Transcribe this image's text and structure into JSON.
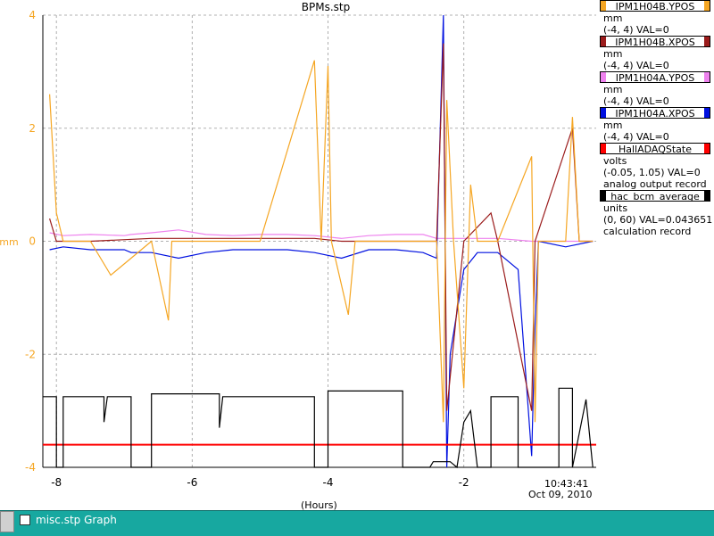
{
  "chart_data": {
    "type": "line",
    "title": "BPMs.stp",
    "ylabel": "mm",
    "xlabel": "(Hours)",
    "xlim": [
      -8.2,
      -0.05
    ],
    "ylim": [
      -4,
      4
    ],
    "x_ticks": [
      -8,
      -6,
      -4,
      -2
    ],
    "y_ticks": [
      -4,
      -2,
      0,
      2,
      4
    ],
    "grid": true,
    "end_time": "10:43:41",
    "end_date": "Oct 09, 2010",
    "legend": [
      {
        "name": "IPM1H04B.YPOS",
        "units": "mm",
        "range": "(-4, 4) VAL=0",
        "color": "#f5a623"
      },
      {
        "name": "IPM1H04B.XPOS",
        "units": "mm",
        "range": "(-4, 4) VAL=0",
        "color": "#9b1c1c"
      },
      {
        "name": "IPM1H04A.YPOS",
        "units": "mm",
        "range": "(-4, 4) VAL=0",
        "color": "#ee82ee"
      },
      {
        "name": "IPM1H04A.XPOS",
        "units": "mm",
        "range": "(-4, 4) VAL=0",
        "color": "#0010e0"
      },
      {
        "name": "HallADAQState",
        "units": "volts",
        "range": "(-0.05, 1.05) VAL=0",
        "extra": "analog output record",
        "color": "#ff0000"
      },
      {
        "name": "hac_bcm_average",
        "units": "units",
        "range": "(0, 60) VAL=0.043651",
        "extra": "calculation record",
        "color": "#000000"
      }
    ],
    "series": [
      {
        "name": "IPM1H04A.YPOS",
        "color": "#ee82ee",
        "points": [
          [
            -8.1,
            0.15
          ],
          [
            -7.9,
            0.1
          ],
          [
            -7.5,
            0.12
          ],
          [
            -7.0,
            0.1
          ],
          [
            -6.9,
            0.12
          ],
          [
            -6.6,
            0.15
          ],
          [
            -6.2,
            0.2
          ],
          [
            -5.8,
            0.12
          ],
          [
            -5.4,
            0.1
          ],
          [
            -5.0,
            0.12
          ],
          [
            -4.6,
            0.12
          ],
          [
            -4.2,
            0.1
          ],
          [
            -3.8,
            0.05
          ],
          [
            -3.4,
            0.1
          ],
          [
            -3.0,
            0.12
          ],
          [
            -2.6,
            0.12
          ],
          [
            -2.4,
            0.05
          ],
          [
            -2.0,
            0.05
          ],
          [
            -1.5,
            0.05
          ],
          [
            -1.0,
            0.0
          ],
          [
            -0.5,
            0.0
          ],
          [
            -0.1,
            0.0
          ]
        ]
      },
      {
        "name": "IPM1H04A.XPOS",
        "color": "#0010e0",
        "points": [
          [
            -8.1,
            -0.15
          ],
          [
            -7.9,
            -0.1
          ],
          [
            -7.5,
            -0.15
          ],
          [
            -7.0,
            -0.15
          ],
          [
            -6.9,
            -0.2
          ],
          [
            -6.6,
            -0.2
          ],
          [
            -6.2,
            -0.3
          ],
          [
            -5.8,
            -0.2
          ],
          [
            -5.4,
            -0.15
          ],
          [
            -5.0,
            -0.15
          ],
          [
            -4.6,
            -0.15
          ],
          [
            -4.2,
            -0.2
          ],
          [
            -3.8,
            -0.3
          ],
          [
            -3.4,
            -0.15
          ],
          [
            -3.0,
            -0.15
          ],
          [
            -2.6,
            -0.2
          ],
          [
            -2.4,
            -0.3
          ],
          [
            -2.3,
            4.0
          ],
          [
            -2.25,
            -4.0
          ],
          [
            -2.2,
            -2.0
          ],
          [
            -2.0,
            -0.5
          ],
          [
            -1.8,
            -0.2
          ],
          [
            -1.5,
            -0.2
          ],
          [
            -1.2,
            -0.5
          ],
          [
            -1.0,
            -3.8
          ],
          [
            -0.95,
            -1.5
          ],
          [
            -0.9,
            0.0
          ],
          [
            -0.5,
            -0.1
          ],
          [
            -0.1,
            0.0
          ]
        ]
      },
      {
        "name": "IPM1H04B.XPOS",
        "color": "#9b1c1c",
        "points": [
          [
            -8.1,
            0.4
          ],
          [
            -8.0,
            0.0
          ],
          [
            -7.5,
            0.0
          ],
          [
            -6.6,
            0.05
          ],
          [
            -6.0,
            0.05
          ],
          [
            -5.0,
            0.05
          ],
          [
            -4.2,
            0.05
          ],
          [
            -3.8,
            0.0
          ],
          [
            -3.0,
            0.0
          ],
          [
            -2.4,
            0.0
          ],
          [
            -2.3,
            3.5
          ],
          [
            -2.25,
            -3.0
          ],
          [
            -2.0,
            0.0
          ],
          [
            -1.6,
            0.5
          ],
          [
            -1.5,
            0.0
          ],
          [
            -1.0,
            -3.0
          ],
          [
            -0.95,
            0.0
          ],
          [
            -0.4,
            2.0
          ],
          [
            -0.3,
            0.0
          ],
          [
            -0.1,
            0.0
          ]
        ]
      },
      {
        "name": "IPM1H04B.YPOS",
        "color": "#f5a623",
        "points": [
          [
            -8.1,
            2.6
          ],
          [
            -8.0,
            0.5
          ],
          [
            -7.9,
            0.0
          ],
          [
            -7.5,
            0.0
          ],
          [
            -7.2,
            -0.6
          ],
          [
            -6.6,
            0.0
          ],
          [
            -6.35,
            -1.4
          ],
          [
            -6.3,
            0.0
          ],
          [
            -5.8,
            0.0
          ],
          [
            -5.0,
            0.0
          ],
          [
            -4.2,
            3.2
          ],
          [
            -4.1,
            0.0
          ],
          [
            -4.0,
            3.1
          ],
          [
            -3.95,
            0.0
          ],
          [
            -3.7,
            -1.3
          ],
          [
            -3.6,
            0.0
          ],
          [
            -3.0,
            0.0
          ],
          [
            -2.4,
            0.0
          ],
          [
            -2.3,
            -3.2
          ],
          [
            -2.25,
            2.5
          ],
          [
            -2.15,
            0.0
          ],
          [
            -2.0,
            -2.6
          ],
          [
            -1.9,
            1.0
          ],
          [
            -1.8,
            0.0
          ],
          [
            -1.5,
            0.0
          ],
          [
            -1.0,
            1.5
          ],
          [
            -0.95,
            -3.2
          ],
          [
            -0.9,
            0.0
          ],
          [
            -0.5,
            0.0
          ],
          [
            -0.4,
            2.2
          ],
          [
            -0.3,
            0.0
          ],
          [
            -0.1,
            0.0
          ]
        ]
      },
      {
        "name": "HallADAQState",
        "color": "#ff0000",
        "points": [
          [
            -8.2,
            -3.6
          ],
          [
            -0.05,
            -3.6
          ]
        ]
      },
      {
        "name": "hac_bcm_average",
        "color": "#000000",
        "points": [
          [
            -8.2,
            -2.75
          ],
          [
            -8.0,
            -2.75
          ],
          [
            -8.0,
            -4.0
          ],
          [
            -7.9,
            -4.0
          ],
          [
            -7.9,
            -2.75
          ],
          [
            -7.3,
            -2.75
          ],
          [
            -7.3,
            -3.2
          ],
          [
            -7.25,
            -2.75
          ],
          [
            -6.9,
            -2.75
          ],
          [
            -6.9,
            -4.0
          ],
          [
            -6.6,
            -4.0
          ],
          [
            -6.6,
            -2.7
          ],
          [
            -5.6,
            -2.7
          ],
          [
            -5.6,
            -3.3
          ],
          [
            -5.55,
            -2.75
          ],
          [
            -4.2,
            -2.75
          ],
          [
            -4.2,
            -4.0
          ],
          [
            -4.0,
            -4.0
          ],
          [
            -4.0,
            -2.65
          ],
          [
            -2.9,
            -2.65
          ],
          [
            -2.9,
            -4.0
          ],
          [
            -2.5,
            -4.0
          ],
          [
            -2.45,
            -3.9
          ],
          [
            -2.2,
            -3.9
          ],
          [
            -2.1,
            -4.0
          ],
          [
            -2.0,
            -3.2
          ],
          [
            -1.9,
            -3.0
          ],
          [
            -1.8,
            -4.0
          ],
          [
            -1.6,
            -4.0
          ],
          [
            -1.6,
            -2.75
          ],
          [
            -1.2,
            -2.75
          ],
          [
            -1.2,
            -4.0
          ],
          [
            -0.6,
            -4.0
          ],
          [
            -0.6,
            -2.6
          ],
          [
            -0.4,
            -2.6
          ],
          [
            -0.4,
            -4.0
          ],
          [
            -0.2,
            -2.8
          ],
          [
            -0.1,
            -4.0
          ]
        ]
      }
    ]
  },
  "taskbar": {
    "label": "misc.stp Graph"
  }
}
